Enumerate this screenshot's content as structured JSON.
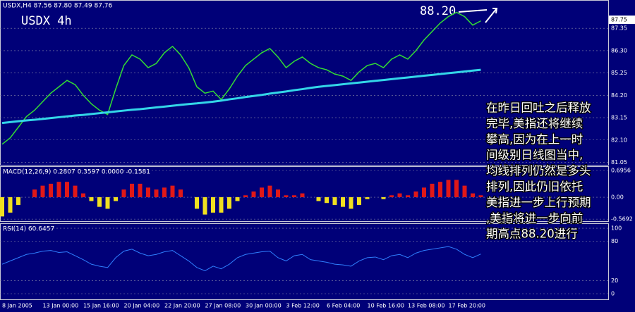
{
  "chart_data": [
    {
      "type": "line",
      "title": "USDX,H4  87.56 87.80 87.49 87.76",
      "label": "USDX 4h",
      "annotation": "88.20",
      "current": 87.75,
      "ylim": [
        80.9,
        88.68
      ],
      "yticks": [
        87.35,
        {
          "value": 86.3,
          "label": "86.30"
        },
        85.25,
        {
          "value": 84.2,
          "label": "84.20"
        },
        83.15,
        {
          "value": 82.1,
          "label": "82.10"
        },
        81.05
      ],
      "grid": true,
      "text_lines": [
        "在昨日回吐之后释放",
        "完毕,美指还将继续",
        "攀高,因为在上一时",
        "间级别日线图当中,",
        "均线排列仍然是多头",
        "排列,因此仍旧依托",
        "美指进一步上行预期",
        ",美指将进一步向前",
        "期高点88.20进行"
      ],
      "series": [
        {
          "color": "#33dd33",
          "values": [
            81.9,
            82.2,
            82.7,
            83.2,
            83.5,
            83.9,
            84.3,
            84.6,
            84.9,
            84.7,
            84.2,
            83.8,
            83.5,
            83.3,
            84.5,
            85.6,
            86.1,
            85.9,
            85.5,
            85.7,
            86.2,
            86.5,
            86.1,
            85.5,
            84.6,
            84.3,
            84.4,
            84.0,
            84.5,
            85.1,
            85.6,
            85.9,
            86.2,
            86.4,
            86.0,
            85.5,
            85.8,
            86.0,
            85.7,
            85.5,
            85.4,
            85.2,
            85.1,
            84.9,
            85.3,
            85.6,
            85.7,
            85.5,
            85.9,
            86.1,
            85.9,
            86.3,
            86.8,
            87.2,
            87.6,
            87.9,
            88.1,
            87.9,
            87.5,
            87.7
          ]
        },
        {
          "color": "#33d6e8",
          "values": [
            82.9,
            82.94,
            82.98,
            83.02,
            83.05,
            83.09,
            83.13,
            83.17,
            83.21,
            83.25,
            83.28,
            83.32,
            83.36,
            83.4,
            83.44,
            83.48,
            83.52,
            83.55,
            83.59,
            83.63,
            83.67,
            83.71,
            83.75,
            83.79,
            83.82,
            83.86,
            83.9,
            83.95,
            84.01,
            84.06,
            84.12,
            84.17,
            84.22,
            84.28,
            84.33,
            84.38,
            84.44,
            84.49,
            84.55,
            84.6,
            84.64,
            84.68,
            84.72,
            84.76,
            84.8,
            84.84,
            84.88,
            84.92,
            84.96,
            85.0,
            85.04,
            85.08,
            85.12,
            85.16,
            85.2,
            85.24,
            85.28,
            85.32,
            85.36,
            85.4
          ]
        }
      ]
    },
    {
      "type": "bar",
      "title": "MACD(12,26,9) 0.2807 0.3597 0.0000 -0.1581",
      "ylim": [
        -0.64,
        0.787
      ],
      "yticks": [
        0.6956,
        {
          "value": 0,
          "label": "0.00"
        },
        -0.5692
      ],
      "pos_color": "#e01818",
      "neg_color": "#f0e020",
      "values": [
        -0.5,
        -0.4,
        -0.2,
        0.0,
        0.2,
        0.3,
        0.35,
        0.4,
        0.4,
        0.3,
        0.1,
        -0.1,
        -0.25,
        -0.3,
        -0.1,
        0.2,
        0.35,
        0.35,
        0.25,
        0.2,
        0.25,
        0.3,
        0.2,
        0.0,
        -0.3,
        -0.45,
        -0.4,
        -0.4,
        -0.3,
        -0.1,
        0.05,
        0.15,
        0.25,
        0.3,
        0.2,
        0.05,
        0.05,
        0.1,
        0.0,
        -0.1,
        -0.15,
        -0.2,
        -0.25,
        -0.3,
        -0.2,
        -0.05,
        0.0,
        -0.05,
        0.05,
        0.1,
        0.05,
        0.15,
        0.25,
        0.35,
        0.4,
        0.45,
        0.45,
        0.3,
        0.1,
        0.05
      ]
    },
    {
      "type": "line",
      "title": "RSI(14) 60.6457",
      "ylim": [
        -8.6,
        106.5
      ],
      "yticks": [
        100,
        80,
        20,
        0
      ],
      "color": "#2f7fff",
      "categories": [
        "8 Jan 2005",
        null,
        null,
        null,
        null,
        "13 Jan 00:00",
        null,
        null,
        null,
        null,
        "15 Jan 16:00",
        null,
        null,
        null,
        null,
        "20 Jan 04:00",
        null,
        null,
        null,
        null,
        "22 Jan 20:00",
        null,
        null,
        null,
        null,
        "27 Jan 08:00",
        null,
        null,
        null,
        null,
        "30 Jan 00:00",
        null,
        null,
        null,
        null,
        "3 Feb 12:00",
        null,
        null,
        null,
        null,
        "6 Feb 04:00",
        null,
        null,
        null,
        null,
        "10 Feb 16:00",
        null,
        null,
        null,
        null,
        "13 Feb 08:00",
        null,
        null,
        null,
        null,
        "17 Feb 20:00",
        null,
        null,
        null,
        null
      ],
      "values": [
        45,
        50,
        55,
        60,
        62,
        65,
        66,
        63,
        64,
        58,
        52,
        45,
        42,
        40,
        55,
        65,
        68,
        62,
        58,
        60,
        64,
        66,
        58,
        50,
        40,
        35,
        42,
        38,
        45,
        55,
        60,
        62,
        64,
        65,
        55,
        50,
        58,
        60,
        52,
        50,
        48,
        45,
        44,
        42,
        50,
        55,
        56,
        52,
        58,
        60,
        55,
        62,
        66,
        68,
        70,
        72,
        68,
        60,
        55,
        60.6
      ]
    }
  ]
}
